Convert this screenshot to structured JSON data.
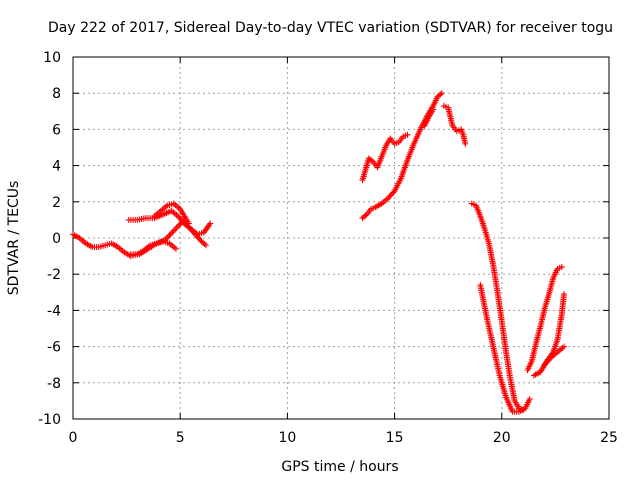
{
  "chart_data": {
    "type": "scatter",
    "title": "Day 222 of 2017, Sidereal Day-to-day VTEC variation (SDTVAR) for receiver togu",
    "xlabel": "GPS time / hours",
    "ylabel": "SDTVAR / TECUs",
    "xlim": [
      0,
      25
    ],
    "ylim": [
      -10,
      10
    ],
    "xticks": [
      0,
      5,
      10,
      15,
      20,
      25
    ],
    "yticks": [
      -10,
      -8,
      -6,
      -4,
      -2,
      0,
      2,
      4,
      6,
      8,
      10
    ],
    "grid": true,
    "marker": "+",
    "marker_color": "#ff0000",
    "series": [
      {
        "segments": [
          {
            "x": [
              0.0,
              0.3,
              0.6,
              0.9,
              1.2,
              1.5,
              1.8,
              2.1,
              2.4,
              2.7,
              3.0,
              3.3,
              3.6,
              3.9,
              4.2,
              4.5,
              4.8
            ],
            "y": [
              0.2,
              0.0,
              -0.3,
              -0.5,
              -0.5,
              -0.4,
              -0.3,
              -0.5,
              -0.8,
              -1.0,
              -0.9,
              -0.7,
              -0.4,
              -0.3,
              -0.2,
              -0.3,
              -0.6
            ]
          },
          {
            "x": [
              2.6,
              3.0,
              3.4,
              3.8,
              4.2,
              4.6,
              4.9,
              5.2,
              5.5,
              5.8,
              6.1,
              6.4
            ],
            "y": [
              1.0,
              1.0,
              1.1,
              1.1,
              1.3,
              1.5,
              1.2,
              0.8,
              0.5,
              0.2,
              0.3,
              0.8
            ]
          },
          {
            "x": [
              3.8,
              4.1,
              4.4,
              4.7,
              5.0,
              5.2,
              5.4
            ],
            "y": [
              1.2,
              1.5,
              1.8,
              1.9,
              1.6,
              1.2,
              0.8
            ]
          },
          {
            "x": [
              2.7,
              3.1,
              3.5,
              3.9,
              4.3,
              4.7,
              5.1,
              5.4,
              5.7,
              6.0,
              6.2
            ],
            "y": [
              -0.9,
              -0.9,
              -0.6,
              -0.3,
              -0.1,
              0.4,
              0.9,
              0.6,
              0.2,
              -0.2,
              -0.4
            ]
          },
          {
            "x": [
              13.5,
              13.6,
              13.7,
              13.8,
              14.0,
              14.2,
              14.4,
              14.6,
              14.8,
              15.0,
              15.2,
              15.4,
              15.6
            ],
            "y": [
              3.2,
              3.6,
              4.0,
              4.4,
              4.2,
              3.9,
              4.5,
              5.1,
              5.5,
              5.2,
              5.3,
              5.6,
              5.7
            ]
          },
          {
            "x": [
              13.5,
              13.7,
              13.9,
              14.1,
              14.4,
              14.7,
              15.0,
              15.3,
              15.6,
              15.9,
              16.2,
              16.5,
              16.8,
              17.0,
              17.2
            ],
            "y": [
              1.1,
              1.3,
              1.6,
              1.7,
              1.9,
              2.2,
              2.6,
              3.3,
              4.3,
              5.2,
              6.0,
              6.7,
              7.3,
              7.8,
              8.0
            ]
          },
          {
            "x": [
              16.4,
              16.6,
              16.8
            ],
            "y": [
              6.2,
              6.7,
              7.1
            ]
          },
          {
            "x": [
              17.3,
              17.5,
              17.7,
              17.9,
              18.1,
              18.2,
              18.3
            ],
            "y": [
              7.3,
              7.2,
              6.2,
              5.9,
              6.0,
              5.7,
              5.2
            ]
          },
          {
            "x": [
              18.6,
              18.8,
              19.0,
              19.2,
              19.4,
              19.6,
              19.8,
              20.0,
              20.2,
              20.4,
              20.6,
              20.8,
              21.0
            ],
            "y": [
              1.9,
              1.8,
              1.2,
              0.5,
              -0.3,
              -1.5,
              -3.0,
              -4.6,
              -6.3,
              -7.8,
              -9.0,
              -9.4,
              -9.5
            ]
          },
          {
            "x": [
              19.0,
              19.3,
              19.6,
              19.9,
              20.2,
              20.5,
              20.8,
              21.1,
              21.3
            ],
            "y": [
              -2.6,
              -4.4,
              -6.0,
              -7.6,
              -8.8,
              -9.6,
              -9.6,
              -9.4,
              -8.9
            ]
          },
          {
            "x": [
              21.2,
              21.4,
              21.6,
              21.8,
              22.0,
              22.2,
              22.4,
              22.6,
              22.8
            ],
            "y": [
              -7.3,
              -6.8,
              -5.8,
              -4.9,
              -3.9,
              -3.1,
              -2.2,
              -1.7,
              -1.6
            ]
          },
          {
            "x": [
              21.5,
              21.8,
              22.1,
              22.4,
              22.6,
              22.8,
              22.9
            ],
            "y": [
              -7.6,
              -7.4,
              -6.8,
              -6.3,
              -5.6,
              -4.2,
              -3.1
            ]
          },
          {
            "x": [
              22.0,
              22.3,
              22.6,
              22.9
            ],
            "y": [
              -7.0,
              -6.6,
              -6.3,
              -6.0
            ]
          }
        ]
      }
    ]
  }
}
